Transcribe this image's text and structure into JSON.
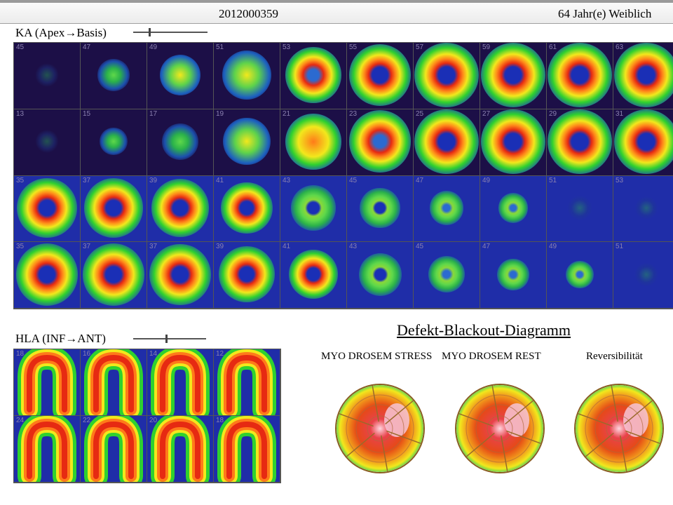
{
  "header": {
    "patient_id": "2012000359",
    "age_sex": "64 Jahr(e)  Weiblich"
  },
  "ka": {
    "label": "KA (Apex→Basis)",
    "rows": [
      {
        "kind": "stress",
        "numbers": [
          "45",
          "47",
          "49",
          "51",
          "53",
          "55",
          "57",
          "59",
          "61",
          "63"
        ],
        "levels": [
          0.05,
          0.25,
          0.45,
          0.65,
          0.8,
          0.95,
          1.0,
          1.0,
          1.0,
          1.0
        ],
        "ring": [
          0,
          0,
          0.1,
          0.3,
          0.55,
          0.85,
          1,
          1,
          1,
          1
        ]
      },
      {
        "kind": "rest",
        "numbers": [
          "13",
          "15",
          "17",
          "19",
          "21",
          "23",
          "25",
          "27",
          "29",
          "31"
        ],
        "levels": [
          0.05,
          0.15,
          0.35,
          0.6,
          0.8,
          0.95,
          1.0,
          1.0,
          1.0,
          1.0
        ],
        "ring": [
          0,
          0,
          0.05,
          0.2,
          0.45,
          0.8,
          1,
          1,
          1,
          1
        ]
      },
      {
        "kind": "stress",
        "numbers": [
          "35",
          "37",
          "39",
          "41",
          "43",
          "45",
          "47",
          "49",
          "51",
          "53"
        ],
        "levels": [
          0.9,
          0.88,
          0.85,
          0.7,
          0.55,
          0.45,
          0.3,
          0.2,
          0.1,
          0.05
        ],
        "ring": [
          1,
          1,
          1,
          1,
          1,
          0.9,
          0.7,
          0.5,
          0.4,
          0.3
        ]
      },
      {
        "kind": "rest",
        "numbers": [
          "35",
          "37",
          "37",
          "39",
          "41",
          "43",
          "45",
          "47",
          "49",
          "51"
        ],
        "levels": [
          0.95,
          0.95,
          0.92,
          0.8,
          0.65,
          0.5,
          0.35,
          0.25,
          0.15,
          0.08
        ],
        "ring": [
          1,
          1,
          1,
          1,
          1,
          1,
          0.8,
          0.6,
          0.5,
          0.4
        ]
      }
    ]
  },
  "hla": {
    "label": "HLA (INF→ANT)",
    "rows": [
      {
        "numbers": [
          "18",
          "16",
          "14",
          "12"
        ],
        "levels": [
          0.9,
          0.95,
          0.95,
          0.85
        ]
      },
      {
        "numbers": [
          "24",
          "22",
          "20",
          "18"
        ],
        "levels": [
          1.0,
          1.0,
          0.95,
          0.9
        ]
      }
    ]
  },
  "diagram": {
    "title": "Defekt-Blackout-Diagramm",
    "labels": [
      "MYO DROSEM  STRESS",
      "MYO DROSEM  REST",
      "Reversibilität"
    ]
  },
  "colors": {
    "background_tile": "#1c0f47",
    "accent_green": "#2fd12f",
    "accent_yellow": "#f2e81c",
    "accent_red": "#e62a12",
    "polar_border": "#8a5c20"
  }
}
